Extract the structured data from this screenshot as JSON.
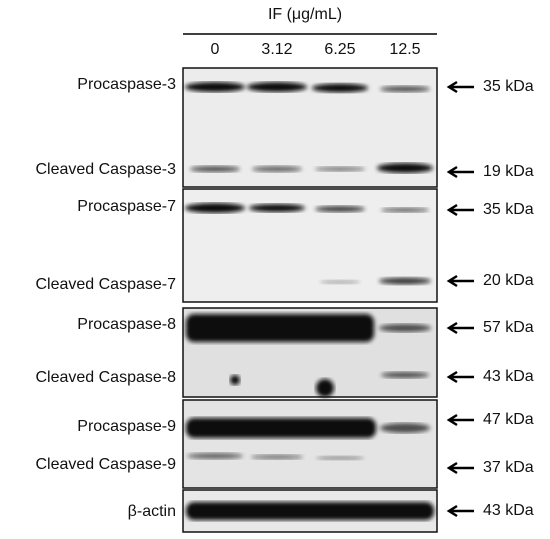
{
  "header": {
    "title": "IF (μg/mL)",
    "lanes": [
      "0",
      "3.12",
      "6.25",
      "12.5"
    ]
  },
  "panels": [
    {
      "rows": [
        {
          "label": "Procaspase-3",
          "size": "35 kDa"
        },
        {
          "label": "Cleaved Caspase-3",
          "size": "19 kDa"
        }
      ]
    },
    {
      "rows": [
        {
          "label": "Procaspase-7",
          "size": "35 kDa"
        },
        {
          "label": "Cleaved Caspase-7",
          "size": "20 kDa"
        }
      ]
    },
    {
      "rows": [
        {
          "label": "Procaspase-8",
          "size": "57 kDa"
        },
        {
          "label": "Cleaved Caspase-8",
          "size": "43 kDa"
        }
      ]
    },
    {
      "rows": [
        {
          "label": "Procaspase-9",
          "size": "47 kDa"
        },
        {
          "label": "Cleaved Caspase-9",
          "size": "37 kDa"
        }
      ]
    },
    {
      "rows": [
        {
          "label": "β-actin",
          "size": "43 kDa"
        }
      ]
    }
  ]
}
